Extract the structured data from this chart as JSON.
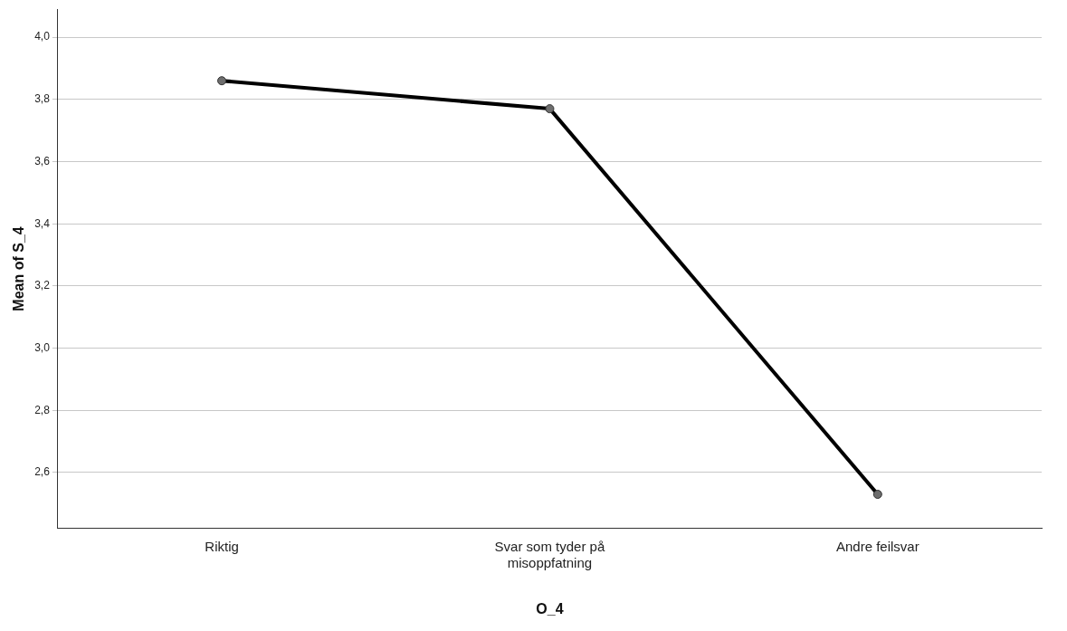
{
  "chart_data": {
    "type": "line",
    "xlabel": "O_4",
    "ylabel": "Mean of S_4",
    "categories": [
      "Riktig",
      "Svar som tyder på misoppfatning",
      "Andre feilsvar"
    ],
    "series": [
      {
        "color": "#000000",
        "values": [
          3.86,
          3.77,
          2.53
        ]
      }
    ],
    "ylim": [
      2.42,
      4.09
    ],
    "yticks": [
      {
        "value": 2.6,
        "label": "2,6"
      },
      {
        "value": 2.8,
        "label": "2,8"
      },
      {
        "value": 3.0,
        "label": "3,0"
      },
      {
        "value": 3.2,
        "label": "3,2"
      },
      {
        "value": 3.4,
        "label": "3,4"
      },
      {
        "value": 3.6,
        "label": "3,6"
      },
      {
        "value": 3.8,
        "label": "3,8"
      },
      {
        "value": 4.0,
        "label": "4,0"
      }
    ],
    "grid": "y",
    "marker": "circle",
    "line_style": "solid",
    "legend": false
  }
}
